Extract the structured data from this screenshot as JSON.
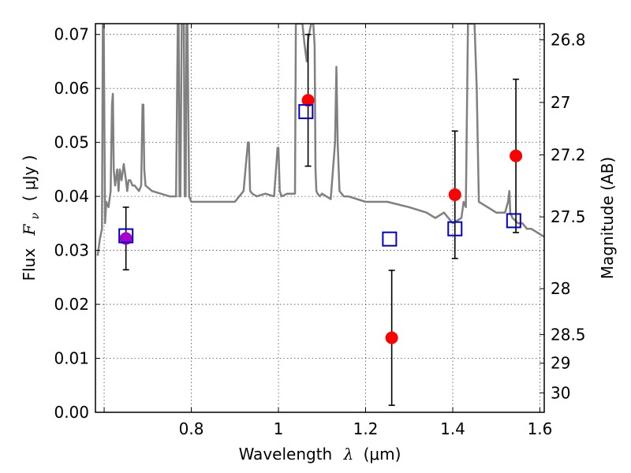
{
  "chart_data": {
    "type": "scatter",
    "xlabel": {
      "text": "Wavelength",
      "symbol": "λ",
      "unit": "(μm)"
    },
    "ylabel": {
      "text": "Flux",
      "symbol": "F",
      "subscript": "ν",
      "unit": "( μJy )"
    },
    "ylabel_right": "Magnitude (AB)",
    "xlim": [
      0.58,
      1.61
    ],
    "ylim": [
      0.0,
      0.072
    ],
    "grid": true,
    "x_ticks": [
      0.6,
      0.8,
      1.0,
      1.2,
      1.4,
      1.6
    ],
    "x_tick_labels": [
      "",
      "0.8",
      "1",
      "1.2",
      "1.4",
      "1.6"
    ],
    "y_ticks": [
      0.0,
      0.01,
      0.02,
      0.03,
      0.04,
      0.05,
      0.06,
      0.07
    ],
    "y_tick_labels": [
      "0.00",
      "0.01",
      "0.02",
      "0.03",
      "0.04",
      "0.05",
      "0.06",
      "0.07"
    ],
    "right_ticks": [
      {
        "label": "26.8",
        "flux": 0.069
      },
      {
        "label": "27",
        "flux": 0.0574
      },
      {
        "label": "27.2",
        "flux": 0.0477
      },
      {
        "label": "27.5",
        "flux": 0.0362
      },
      {
        "label": "28",
        "flux": 0.0229
      },
      {
        "label": "28.5",
        "flux": 0.0144
      },
      {
        "label": "29",
        "flux": 0.0091
      },
      {
        "label": "30",
        "flux": 0.0036
      }
    ],
    "colors": {
      "observed": "#ff0000",
      "overlap": "#aa00cc",
      "model": "#0000cc",
      "spectrum": "#808080"
    },
    "series": [
      {
        "type": "points_with_errorbars",
        "x": [
          0.65,
          1.068,
          1.26,
          1.405,
          1.545
        ],
        "y": [
          0.0322,
          0.0578,
          0.0138,
          0.0403,
          0.0475
        ],
        "yerr": [
          0.0058,
          0.0122,
          0.0125,
          0.0118,
          0.0142
        ]
      },
      {
        "type": "open_squares",
        "x": [
          0.65,
          1.063,
          1.255,
          1.405,
          1.54
        ],
        "y": [
          0.0327,
          0.0557,
          0.0321,
          0.034,
          0.0355
        ]
      },
      {
        "type": "line",
        "x": [
          0.585,
          0.59,
          0.595,
          0.597,
          0.598,
          0.599,
          0.602,
          0.605,
          0.61,
          0.615,
          0.618,
          0.62,
          0.622,
          0.625,
          0.63,
          0.633,
          0.636,
          0.64,
          0.645,
          0.65,
          0.653,
          0.656,
          0.66,
          0.665,
          0.67,
          0.68,
          0.685,
          0.688,
          0.69,
          0.692,
          0.695,
          0.71,
          0.73,
          0.75,
          0.765,
          0.769,
          0.771,
          0.773,
          0.775,
          0.778,
          0.781,
          0.783,
          0.785,
          0.787,
          0.789,
          0.791,
          0.795,
          0.8,
          0.82,
          0.85,
          0.9,
          0.92,
          0.93,
          0.932,
          0.935,
          0.94,
          0.95,
          0.97,
          0.99,
          0.998,
          1.0,
          1.003,
          1.007,
          1.02,
          1.038,
          1.04,
          1.043,
          1.046,
          1.05,
          1.055,
          1.06,
          1.065,
          1.068,
          1.07,
          1.075,
          1.08,
          1.083,
          1.085,
          1.087,
          1.09,
          1.095,
          1.1,
          1.12,
          1.13,
          1.133,
          1.136,
          1.14,
          1.15,
          1.16,
          1.2,
          1.25,
          1.3,
          1.34,
          1.36,
          1.38,
          1.4,
          1.42,
          1.425,
          1.43,
          1.435,
          1.445,
          1.45,
          1.455,
          1.46,
          1.48,
          1.5,
          1.52,
          1.527,
          1.53,
          1.532,
          1.537,
          1.55,
          1.56,
          1.57,
          1.58,
          1.59,
          1.6,
          1.61
        ],
        "y": [
          0.029,
          0.032,
          0.034,
          0.072,
          0.072,
          0.072,
          0.035,
          0.039,
          0.038,
          0.041,
          0.057,
          0.059,
          0.045,
          0.042,
          0.045,
          0.041,
          0.045,
          0.043,
          0.046,
          0.043,
          0.041,
          0.043,
          0.043,
          0.042,
          0.042,
          0.041,
          0.042,
          0.057,
          0.057,
          0.045,
          0.042,
          0.041,
          0.0405,
          0.04,
          0.04,
          0.072,
          0.072,
          0.04,
          0.04,
          0.072,
          0.072,
          0.072,
          0.04,
          0.04,
          0.072,
          0.072,
          0.04,
          0.039,
          0.039,
          0.039,
          0.039,
          0.041,
          0.05,
          0.05,
          0.041,
          0.0405,
          0.04,
          0.0405,
          0.04,
          0.049,
          0.049,
          0.041,
          0.04,
          0.0405,
          0.0405,
          0.072,
          0.072,
          0.072,
          0.072,
          0.072,
          0.068,
          0.065,
          0.069,
          0.07,
          0.072,
          0.072,
          0.068,
          0.045,
          0.041,
          0.0405,
          0.04,
          0.0405,
          0.0395,
          0.05,
          0.064,
          0.05,
          0.041,
          0.04,
          0.04,
          0.039,
          0.039,
          0.038,
          0.037,
          0.036,
          0.037,
          0.035,
          0.036,
          0.039,
          0.038,
          0.072,
          0.072,
          0.072,
          0.06,
          0.039,
          0.038,
          0.037,
          0.037,
          0.039,
          0.041,
          0.037,
          0.036,
          0.035,
          0.035,
          0.034,
          0.034,
          0.0335,
          0.033,
          0.0325
        ]
      }
    ]
  }
}
